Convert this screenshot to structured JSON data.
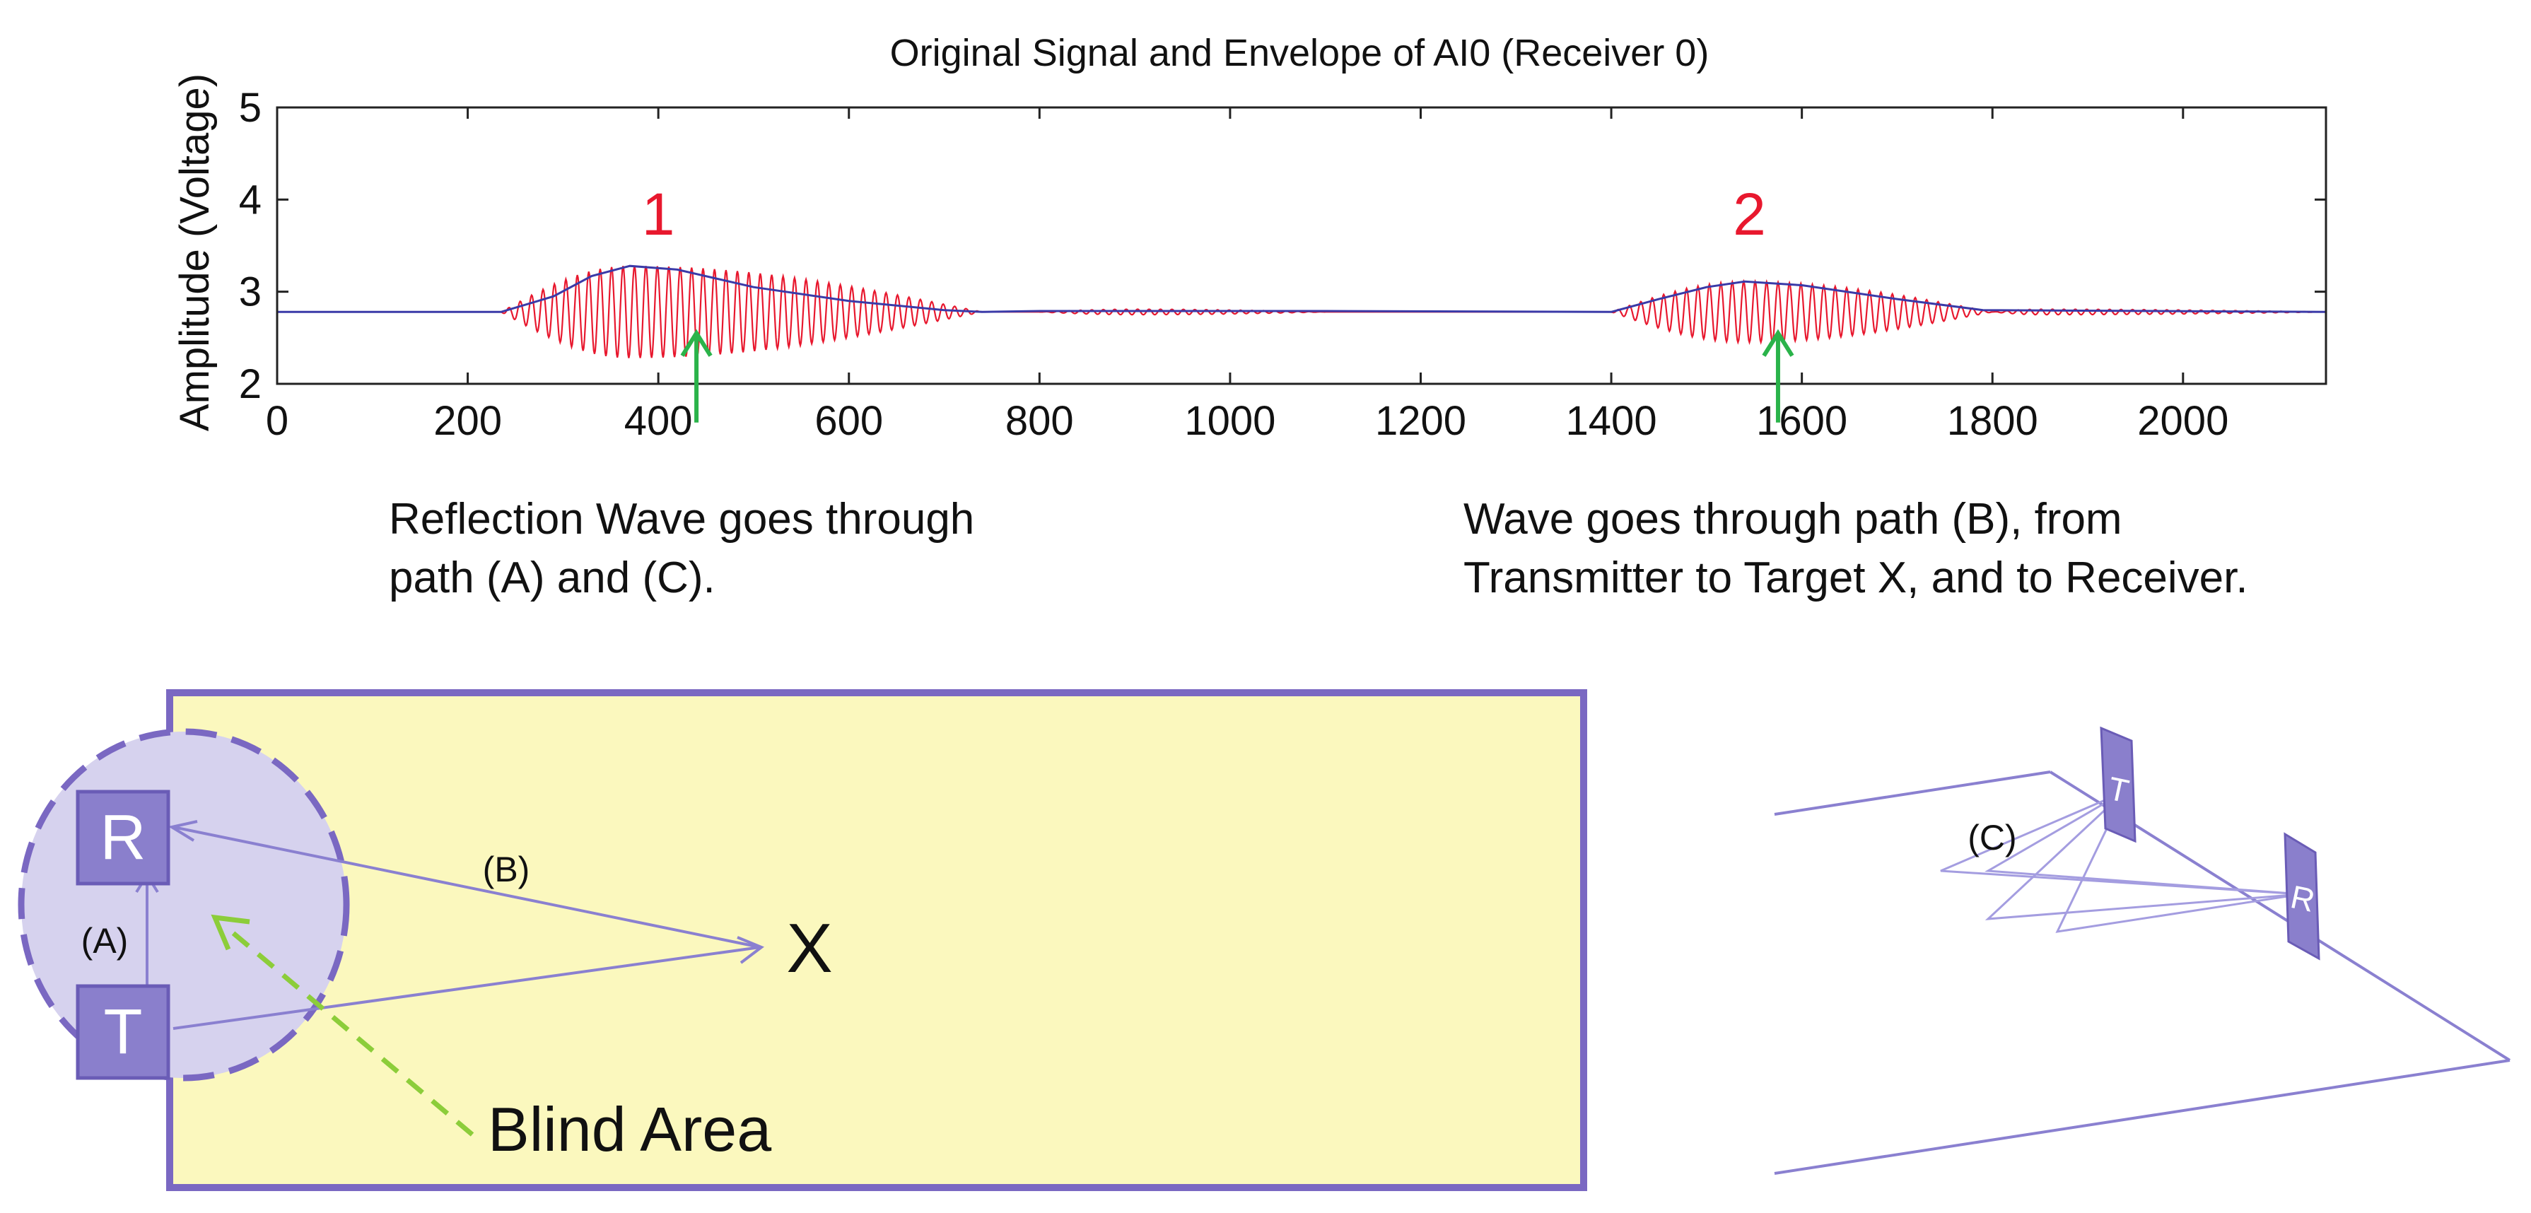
{
  "chart_data": {
    "type": "line",
    "title": "Original Signal and Envelope of AI0 (Receiver 0)",
    "xlabel": "",
    "ylabel": "Amplitude (Voltage)",
    "xlim": [
      0,
      2150
    ],
    "ylim": [
      2,
      5
    ],
    "x_ticks": [
      0,
      200,
      400,
      600,
      800,
      1000,
      1200,
      1400,
      1600,
      1800,
      2000
    ],
    "y_ticks": [
      2,
      3,
      4,
      5
    ],
    "baseline": 2.78,
    "grid": false,
    "legend": "none",
    "series": [
      {
        "color": "#e8182e",
        "bursts": [
          {
            "start": 235,
            "peak": 370,
            "end": 740,
            "amplitude": 0.5
          },
          {
            "start": 800,
            "peak": 900,
            "end": 1100,
            "amplitude": 0.03
          },
          {
            "start": 1400,
            "peak": 1540,
            "end": 1800,
            "amplitude": 0.33
          },
          {
            "start": 1800,
            "peak": 1850,
            "end": 2150,
            "amplitude": 0.03
          }
        ],
        "carrier_period": 12
      },
      {
        "color": "#3a3aa8",
        "envelope_points": [
          [
            0,
            2.78
          ],
          [
            235,
            2.78
          ],
          [
            290,
            2.95
          ],
          [
            330,
            3.17
          ],
          [
            370,
            3.28
          ],
          [
            420,
            3.24
          ],
          [
            500,
            3.05
          ],
          [
            600,
            2.9
          ],
          [
            700,
            2.8
          ],
          [
            740,
            2.78
          ],
          [
            800,
            2.79
          ],
          [
            1100,
            2.79
          ],
          [
            1400,
            2.78
          ],
          [
            1450,
            2.92
          ],
          [
            1500,
            3.05
          ],
          [
            1540,
            3.11
          ],
          [
            1600,
            3.07
          ],
          [
            1700,
            2.92
          ],
          [
            1790,
            2.8
          ],
          [
            2150,
            2.78
          ]
        ]
      }
    ],
    "annotations": [
      {
        "label": "1",
        "x": 400,
        "y": 3.85,
        "color": "#e8182e"
      },
      {
        "label": "2",
        "x": 1545,
        "y": 3.85,
        "color": "#e8182e"
      }
    ],
    "arrows": [
      {
        "x": 440,
        "y_tip": 2.55,
        "y_tail": 1.58,
        "color": "#2ab34a"
      },
      {
        "x": 1575,
        "y_tip": 2.55,
        "y_tail": 1.58,
        "color": "#2ab34a"
      }
    ]
  },
  "notes": {
    "left_line1": "Reflection Wave goes through",
    "left_line2": "path (A) and (C).",
    "right_line1": "Wave goes through path (B), from",
    "right_line2": "Transmitter to Target X, and to Receiver."
  },
  "diagram_left": {
    "receiver_label": "R",
    "transmitter_label": "T",
    "path_a_label": "(A)",
    "path_b_label": "(B)",
    "target_label": "X",
    "blind_area_label": "Blind Area",
    "room_color": "#fbf8be",
    "border_color": "#7a68c2",
    "sensor_color": "#8a7fcc",
    "circle_fill": "#d6d2ee",
    "blind_arrow_color": "#8ccd3a"
  },
  "diagram_right": {
    "path_c_label": "(C)",
    "transmitter_label": "T",
    "receiver_label": "R",
    "line_color": "#8a80d0"
  }
}
